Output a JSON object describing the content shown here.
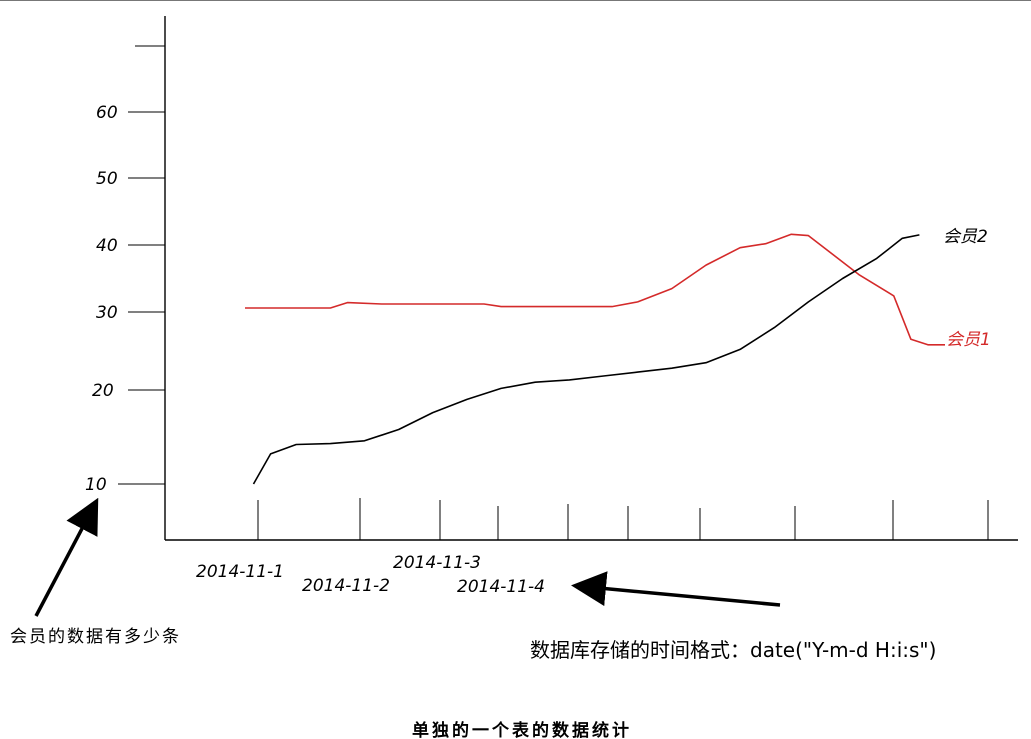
{
  "chart_data": {
    "type": "line",
    "x_labels": [
      "2014-11-1",
      "2014-11-2",
      "2014-11-3",
      "2014-11-4"
    ],
    "y_ticks": [
      10,
      20,
      30,
      40,
      50,
      60
    ],
    "series": [
      {
        "name": "会员1",
        "color": "#d42a2a",
        "points": [
          [
            0.0,
            30.6
          ],
          [
            0.1,
            30.6
          ],
          [
            0.12,
            31.4
          ],
          [
            0.16,
            31.2
          ],
          [
            0.22,
            31.2
          ],
          [
            0.28,
            31.2
          ],
          [
            0.3,
            30.8
          ],
          [
            0.38,
            30.8
          ],
          [
            0.43,
            30.8
          ],
          [
            0.46,
            31.5
          ],
          [
            0.5,
            33.5
          ],
          [
            0.54,
            37.0
          ],
          [
            0.58,
            39.6
          ],
          [
            0.61,
            40.2
          ],
          [
            0.64,
            41.6
          ],
          [
            0.66,
            41.4
          ],
          [
            0.72,
            35.5
          ],
          [
            0.76,
            32.4
          ],
          [
            0.78,
            26.5
          ],
          [
            0.8,
            25.8
          ],
          [
            0.82,
            25.8
          ]
        ]
      },
      {
        "name": "会员2",
        "color": "#000000",
        "points": [
          [
            0.01,
            10.0
          ],
          [
            0.03,
            13.2
          ],
          [
            0.06,
            14.2
          ],
          [
            0.1,
            14.3
          ],
          [
            0.14,
            14.6
          ],
          [
            0.18,
            15.8
          ],
          [
            0.22,
            17.6
          ],
          [
            0.26,
            19.0
          ],
          [
            0.3,
            20.2
          ],
          [
            0.34,
            21.0
          ],
          [
            0.38,
            21.3
          ],
          [
            0.42,
            21.8
          ],
          [
            0.46,
            22.3
          ],
          [
            0.5,
            22.8
          ],
          [
            0.54,
            23.5
          ],
          [
            0.58,
            25.2
          ],
          [
            0.62,
            28.0
          ],
          [
            0.66,
            31.5
          ],
          [
            0.7,
            35.0
          ],
          [
            0.74,
            38.0
          ],
          [
            0.77,
            41.0
          ],
          [
            0.79,
            41.5
          ]
        ]
      }
    ]
  },
  "annotations": {
    "count_note": "会员的数据有多少条",
    "time_format_note": "数据库存储的时间格式：date(\"Y-m-d H:i:s\")",
    "caption": "单独的一个表的数据统计"
  }
}
